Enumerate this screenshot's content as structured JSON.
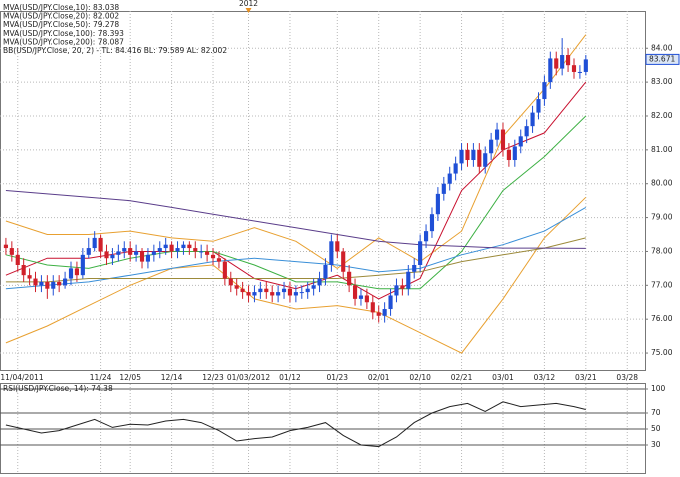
{
  "chart_data": [
    {
      "type": "candlestick",
      "annotations": [
        {
          "text": "2012",
          "x": 41
        }
      ],
      "xlim": [
        -1,
        108
      ],
      "xticks": [
        {
          "value": 2,
          "label": "11/04/2011"
        },
        {
          "value": 16,
          "label": "11/24"
        },
        {
          "value": 21,
          "label": "12/05"
        },
        {
          "value": 28,
          "label": "12/14"
        },
        {
          "value": 35,
          "label": "12/23"
        },
        {
          "value": 41,
          "label": "01/03/2012"
        },
        {
          "value": 48,
          "label": "01/12"
        },
        {
          "value": 56,
          "label": "01/23"
        },
        {
          "value": 63,
          "label": "02/01"
        },
        {
          "value": 70,
          "label": "02/10"
        },
        {
          "value": 77,
          "label": "02/21"
        },
        {
          "value": 84,
          "label": "03/01"
        },
        {
          "value": 91,
          "label": "03/12"
        },
        {
          "value": 98,
          "label": "03/21"
        },
        {
          "value": 105,
          "label": "03/28"
        }
      ],
      "ylim": [
        74.47,
        85.1
      ],
      "yticks": [
        {
          "value": 75,
          "label": "75.00"
        },
        {
          "value": 76,
          "label": "76.00"
        },
        {
          "value": 77,
          "label": "77.00"
        },
        {
          "value": 78,
          "label": "78.00"
        },
        {
          "value": 79,
          "label": "79.00"
        },
        {
          "value": 80,
          "label": "80.00"
        },
        {
          "value": 81,
          "label": "81.00"
        },
        {
          "value": 82,
          "label": "82.00"
        },
        {
          "value": 83,
          "label": "83.00"
        },
        {
          "value": 84,
          "label": "84.00"
        }
      ],
      "grid": true,
      "up_color": "#1f4fd6",
      "down_color": "#d0202a",
      "ohlc": {
        "open": [
          78.2,
          78.1,
          77.9,
          77.6,
          77.3,
          77.2,
          77.0,
          77.1,
          76.9,
          77.1,
          77.0,
          77.2,
          77.5,
          77.3,
          77.9,
          78.1,
          78.4,
          78.0,
          77.8,
          77.9,
          78.0,
          78.1,
          77.9,
          78.0,
          77.7,
          77.9,
          78.0,
          78.1,
          78.2,
          78.0,
          78.1,
          78.2,
          78.1,
          78.0,
          78.0,
          77.9,
          77.8,
          77.7,
          77.2,
          77.0,
          76.9,
          76.8,
          76.7,
          76.8,
          76.9,
          76.8,
          76.7,
          76.8,
          76.9,
          76.7,
          76.8,
          76.8,
          76.9,
          77.0,
          77.2,
          77.6,
          78.3,
          78.0,
          77.4,
          77.0,
          76.6,
          76.7,
          76.5,
          76.2,
          76.1,
          76.3,
          76.7,
          77.0,
          76.9,
          77.4,
          77.6,
          78.3,
          78.6,
          79.1,
          79.7,
          80.0,
          80.3,
          80.6,
          81.0,
          80.7,
          81.0,
          80.5,
          80.9,
          81.3,
          81.6,
          81.0,
          80.7,
          81.1,
          81.4,
          81.7,
          82.1,
          82.5,
          83.0,
          83.7,
          83.4,
          83.8,
          83.5,
          83.3,
          83.3
        ],
        "high": [
          78.4,
          78.3,
          78.1,
          77.8,
          77.5,
          77.4,
          77.3,
          77.3,
          77.3,
          77.3,
          77.4,
          77.7,
          77.7,
          78.1,
          78.4,
          78.6,
          78.5,
          78.2,
          78.1,
          78.2,
          78.3,
          78.3,
          78.2,
          78.1,
          78.1,
          78.2,
          78.3,
          78.4,
          78.3,
          78.3,
          78.3,
          78.3,
          78.3,
          78.2,
          78.2,
          78.1,
          78.0,
          77.8,
          77.4,
          77.2,
          77.1,
          77.0,
          77.0,
          77.1,
          77.1,
          77.0,
          77.0,
          77.1,
          77.1,
          77.0,
          77.0,
          77.1,
          77.2,
          77.4,
          77.8,
          78.5,
          78.5,
          78.1,
          77.6,
          77.2,
          76.9,
          76.9,
          76.7,
          76.4,
          76.5,
          76.9,
          77.2,
          77.2,
          77.6,
          77.8,
          78.5,
          78.8,
          79.3,
          79.9,
          80.2,
          80.5,
          80.8,
          81.2,
          81.2,
          81.2,
          81.2,
          81.1,
          81.5,
          81.8,
          81.8,
          81.2,
          81.3,
          81.6,
          81.9,
          82.3,
          82.7,
          83.2,
          83.9,
          83.9,
          84.3,
          84.0,
          83.7,
          83.5,
          83.8
        ],
        "low": [
          77.9,
          77.7,
          77.4,
          77.1,
          77.0,
          76.8,
          76.8,
          76.6,
          76.7,
          76.8,
          76.9,
          77.0,
          77.1,
          77.2,
          77.8,
          78.0,
          77.8,
          77.6,
          77.6,
          77.7,
          77.8,
          77.7,
          77.7,
          77.5,
          77.5,
          77.7,
          77.8,
          77.9,
          77.8,
          77.8,
          77.9,
          77.9,
          77.8,
          77.8,
          77.7,
          77.6,
          77.5,
          77.0,
          76.8,
          76.7,
          76.6,
          76.5,
          76.5,
          76.6,
          76.6,
          76.5,
          76.5,
          76.6,
          76.5,
          76.5,
          76.6,
          76.6,
          76.7,
          76.8,
          77.0,
          77.4,
          77.8,
          77.2,
          76.8,
          76.4,
          76.4,
          76.3,
          76.0,
          75.9,
          75.9,
          76.1,
          76.5,
          76.7,
          76.7,
          77.2,
          77.4,
          78.1,
          78.4,
          78.9,
          79.5,
          79.8,
          80.1,
          80.4,
          80.5,
          80.5,
          80.3,
          80.3,
          80.7,
          81.1,
          80.8,
          80.5,
          80.5,
          80.9,
          81.2,
          81.5,
          81.9,
          82.3,
          82.8,
          83.2,
          83.2,
          83.3,
          83.1,
          83.1,
          83.2
        ],
        "close": [
          78.1,
          77.9,
          77.6,
          77.3,
          77.2,
          77.0,
          77.1,
          76.9,
          77.1,
          77.0,
          77.2,
          77.5,
          77.3,
          77.9,
          78.1,
          78.4,
          78.0,
          77.8,
          77.9,
          78.0,
          78.1,
          77.9,
          78.0,
          77.7,
          77.9,
          78.0,
          78.1,
          78.2,
          78.0,
          78.1,
          78.2,
          78.1,
          78.0,
          78.0,
          77.9,
          77.8,
          77.7,
          77.2,
          77.0,
          76.9,
          76.8,
          76.7,
          76.8,
          76.9,
          76.8,
          76.7,
          76.8,
          76.9,
          76.7,
          76.8,
          76.8,
          76.9,
          77.0,
          77.2,
          77.6,
          78.3,
          78.0,
          77.4,
          77.0,
          76.6,
          76.7,
          76.5,
          76.2,
          76.1,
          76.3,
          76.7,
          77.0,
          76.9,
          77.4,
          77.6,
          78.3,
          78.6,
          79.1,
          79.7,
          80.0,
          80.3,
          80.6,
          81.0,
          80.7,
          81.0,
          80.5,
          80.9,
          81.3,
          81.6,
          81.0,
          80.7,
          81.1,
          81.4,
          81.7,
          82.1,
          82.5,
          83.0,
          83.7,
          83.4,
          83.8,
          83.5,
          83.3,
          83.3,
          83.671
        ]
      },
      "series": [
        {
          "name": "MVA(USD/JPY.Close,10): 83.038",
          "color": "#c8102e",
          "x": [
            0,
            7,
            14,
            21,
            28,
            35,
            42,
            49,
            56,
            63,
            70,
            77,
            84,
            91,
            98
          ],
          "values": [
            77.3,
            77.8,
            77.8,
            78.0,
            78.0,
            78.0,
            77.2,
            76.9,
            77.3,
            76.6,
            77.2,
            79.8,
            81.0,
            81.5,
            83.0
          ]
        },
        {
          "name": "MVA(USD/JPY.Close,20): 82.002",
          "color": "#3cb043",
          "x": [
            0,
            7,
            14,
            21,
            28,
            35,
            42,
            49,
            56,
            63,
            70,
            77,
            84,
            91,
            98
          ],
          "values": [
            77.9,
            77.6,
            77.5,
            77.8,
            78.0,
            78.0,
            77.6,
            77.1,
            77.1,
            76.9,
            76.9,
            78.0,
            79.8,
            80.8,
            82.0
          ]
        },
        {
          "name": "MVA(USD/JPY.Close,50): 79.278",
          "color": "#3a8fd8",
          "x": [
            0,
            7,
            14,
            21,
            28,
            35,
            42,
            49,
            56,
            63,
            70,
            77,
            84,
            91,
            98
          ],
          "values": [
            76.9,
            77.0,
            77.1,
            77.3,
            77.5,
            77.7,
            77.8,
            77.7,
            77.6,
            77.4,
            77.5,
            77.9,
            78.2,
            78.6,
            79.3
          ]
        },
        {
          "name": "MVA(USD/JPY.Close,100): 78.393",
          "color": "#9c8a3a",
          "x": [
            0,
            7,
            14,
            21,
            28,
            35,
            42,
            49,
            56,
            63,
            70,
            77,
            84,
            91,
            98
          ],
          "values": [
            77.1,
            77.1,
            77.2,
            77.2,
            77.2,
            77.2,
            77.2,
            77.2,
            77.2,
            77.3,
            77.4,
            77.7,
            77.9,
            78.1,
            78.4
          ]
        },
        {
          "name": "MVA(USD/JPY.Close,200): 78.087",
          "color": "#5a3d8a",
          "x": [
            0,
            7,
            14,
            21,
            28,
            35,
            42,
            49,
            56,
            63,
            70,
            77,
            84,
            91,
            98
          ],
          "values": [
            79.8,
            79.7,
            79.6,
            79.5,
            79.3,
            79.1,
            78.9,
            78.7,
            78.5,
            78.3,
            78.2,
            78.15,
            78.1,
            78.1,
            78.09
          ]
        }
      ],
      "bands": {
        "name": "BB(USD/JPY.Close, 20, 2) - TL: 84.416 BL: 79.589 AL: 82.002",
        "color": "#e8a030",
        "x": [
          0,
          7,
          14,
          21,
          28,
          35,
          42,
          49,
          56,
          63,
          70,
          77,
          84,
          91,
          98
        ],
        "upper": [
          78.9,
          78.5,
          78.5,
          78.6,
          78.4,
          78.3,
          78.7,
          78.3,
          77.5,
          78.4,
          77.7,
          78.6,
          81.4,
          82.8,
          84.4
        ],
        "lower": [
          75.3,
          75.8,
          76.4,
          77.0,
          77.5,
          77.6,
          76.6,
          76.3,
          76.4,
          76.2,
          75.6,
          75.0,
          76.6,
          78.4,
          79.6
        ]
      }
    },
    {
      "type": "line",
      "xlim": [
        -1,
        108
      ],
      "ylim": [
        0,
        100
      ],
      "yticks": [
        30,
        50,
        70,
        100
      ],
      "series": [
        {
          "name": "RSI(USD/JPY.Close, 14): 74.38",
          "color": "#222222",
          "x": [
            0,
            3,
            6,
            9,
            12,
            15,
            18,
            21,
            24,
            27,
            30,
            33,
            36,
            39,
            42,
            45,
            48,
            51,
            54,
            57,
            60,
            63,
            66,
            69,
            72,
            75,
            78,
            81,
            84,
            87,
            90,
            93,
            96,
            98
          ],
          "values": [
            55,
            50,
            45,
            48,
            55,
            62,
            52,
            56,
            55,
            60,
            62,
            58,
            48,
            35,
            38,
            40,
            48,
            52,
            58,
            42,
            30,
            28,
            40,
            58,
            70,
            78,
            82,
            72,
            84,
            78,
            80,
            82,
            78,
            74.38
          ]
        }
      ]
    }
  ]
}
